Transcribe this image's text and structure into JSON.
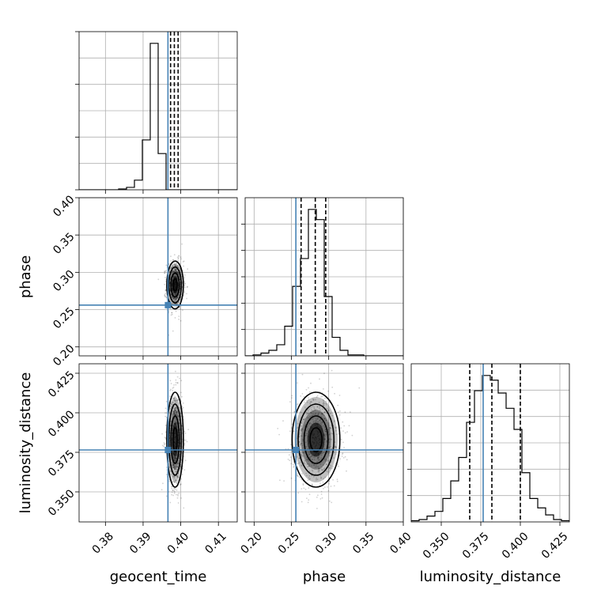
{
  "chart_data": {
    "type": "scatter",
    "title": "",
    "truth_color": "#4682b4",
    "point_color": "#000000",
    "quantiles_shown": [
      0.16,
      0.5,
      0.84
    ],
    "grid": true,
    "params": [
      {
        "name": "geocent_time",
        "label": "geocent_time",
        "range": [
          0.373,
          0.415
        ],
        "ticks": [
          0.38,
          0.39,
          0.4,
          0.41
        ],
        "tick_labels": [
          "0.38",
          "0.39",
          "0.40",
          "0.41"
        ],
        "truth": 0.3966,
        "mean": 0.3985,
        "sd": 0.0011,
        "quantiles": [
          0.3973,
          0.3983,
          0.3993
        ],
        "hist_edges": [
          0.373,
          0.3751,
          0.3772,
          0.3793,
          0.3814,
          0.3835,
          0.3856,
          0.3877,
          0.3898,
          0.3919,
          0.394,
          0.3961,
          0.3982,
          0.4003,
          0.4024,
          0.4045,
          0.4066,
          0.4087,
          0.4108,
          0.4129,
          0.415
        ],
        "hist_counts": [
          0,
          0,
          0,
          0,
          0,
          1,
          3,
          12,
          62,
          182,
          45,
          0,
          0,
          0,
          0,
          0,
          0,
          0,
          0,
          0
        ]
      },
      {
        "name": "phase",
        "label": "phase",
        "range": [
          0.188,
          0.4
        ],
        "ticks": [
          0.2,
          0.25,
          0.3,
          0.35,
          0.4
        ],
        "tick_labels": [
          "0.20",
          "0.25",
          "0.30",
          "0.35",
          "0.40"
        ],
        "truth": 0.256,
        "mean": 0.283,
        "sd": 0.016,
        "quantiles": [
          0.263,
          0.282,
          0.296
        ],
        "hist_edges": [
          0.188,
          0.1986,
          0.2092,
          0.2198,
          0.2304,
          0.241,
          0.2516,
          0.2622,
          0.2728,
          0.2834,
          0.294,
          0.3046,
          0.3152,
          0.3258,
          0.3364,
          0.347,
          0.3576,
          0.3682,
          0.3788,
          0.3894,
          0.4
        ],
        "hist_counts": [
          0,
          1,
          3,
          6,
          12,
          32,
          75,
          105,
          158,
          147,
          64,
          20,
          6,
          1,
          1,
          0,
          0,
          0,
          0,
          0
        ]
      },
      {
        "name": "luminosity_distance",
        "label": "luminosity_distance",
        "range": [
          0.331,
          0.431
        ],
        "ticks": [
          0.35,
          0.375,
          0.4,
          0.425
        ],
        "tick_labels": [
          "0.350",
          "0.375",
          "0.400",
          "0.425"
        ],
        "truth": 0.3765,
        "mean": 0.383,
        "sd": 0.015,
        "quantiles": [
          0.368,
          0.382,
          0.4
        ],
        "hist_edges": [
          0.331,
          0.336,
          0.341,
          0.346,
          0.351,
          0.356,
          0.361,
          0.366,
          0.371,
          0.376,
          0.381,
          0.386,
          0.391,
          0.396,
          0.401,
          0.406,
          0.411,
          0.416,
          0.421,
          0.426,
          0.431
        ],
        "hist_counts": [
          1,
          2,
          5,
          9,
          20,
          35,
          55,
          85,
          112,
          125,
          121,
          110,
          97,
          79,
          42,
          20,
          12,
          6,
          2,
          1
        ]
      }
    ]
  }
}
